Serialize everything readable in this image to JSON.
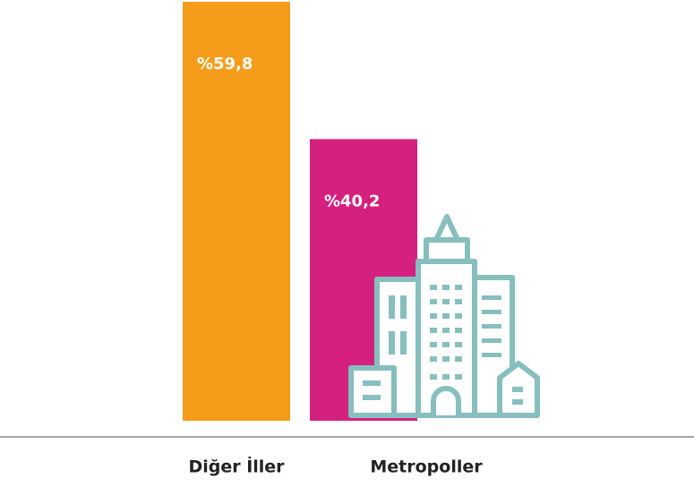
{
  "chart_data": {
    "type": "bar",
    "categories": [
      "Diğer İller",
      "Metropoller"
    ],
    "values": [
      59.8,
      40.2
    ],
    "value_labels": [
      "%59,8",
      "%40,2"
    ],
    "colors": [
      "#f59c1a",
      "#d6207f"
    ]
  }
}
